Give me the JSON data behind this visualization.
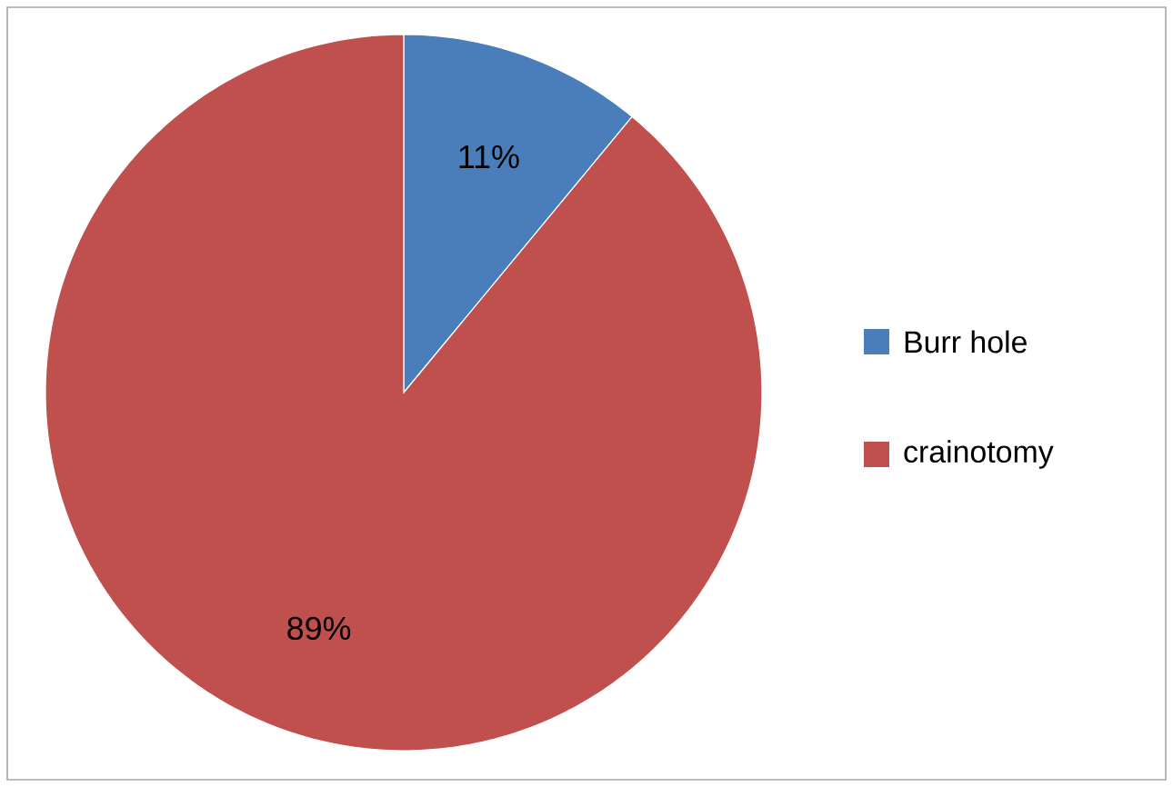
{
  "chart_data": {
    "type": "pie",
    "categories": [
      "Burr hole",
      "crainotomy"
    ],
    "values": [
      11,
      89
    ],
    "value_labels": [
      "11%",
      "89%"
    ],
    "colors": [
      "#4a7ebb",
      "#c0504d"
    ],
    "legend": "right"
  }
}
